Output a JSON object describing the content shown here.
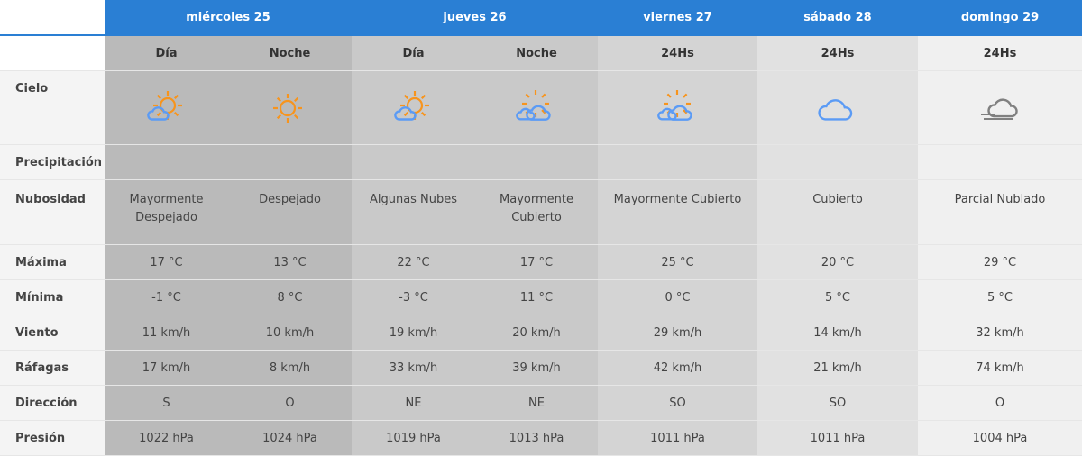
{
  "days": [
    "miércoles 25",
    "jueves 26",
    "viernes 27",
    "sábado 28",
    "domingo 29"
  ],
  "periods": [
    "Día",
    "Noche",
    "Día",
    "Noche",
    "24Hs",
    "24Hs",
    "24Hs"
  ],
  "labels": {
    "cielo": "Cielo",
    "precip": "Precipitación",
    "nub": "Nubosidad",
    "max": "Máxima",
    "min": "Mínima",
    "viento": "Viento",
    "rafagas": "Ráfagas",
    "dir": "Dirección",
    "presion": "Presión"
  },
  "icons": [
    "sun-cloud-icon",
    "sun-icon",
    "sun-cloud-icon",
    "sun-clouds-icon",
    "sun-clouds-icon",
    "cloud-icon",
    "fog-cloud-icon"
  ],
  "colors": {
    "header": "#2a7fd4",
    "sun": "#f7941d",
    "cloud": "#5b9bf5",
    "fog": "#808080"
  },
  "nub": [
    "Mayormente Despejado",
    "Despejado",
    "Algunas Nubes",
    "Mayormente Cubierto",
    "Mayormente Cubierto",
    "Cubierto",
    "Parcial Nublado"
  ],
  "max": [
    "17 °C",
    "13 °C",
    "22 °C",
    "17 °C",
    "25 °C",
    "20 °C",
    "29 °C"
  ],
  "min": [
    "-1 °C",
    "8 °C",
    "-3 °C",
    "11 °C",
    "0 °C",
    "5 °C",
    "5 °C"
  ],
  "viento": [
    "11 km/h",
    "10 km/h",
    "19 km/h",
    "20 km/h",
    "29 km/h",
    "14 km/h",
    "32 km/h"
  ],
  "rafagas": [
    "17 km/h",
    "8 km/h",
    "33 km/h",
    "39 km/h",
    "42 km/h",
    "21 km/h",
    "74 km/h"
  ],
  "dir": [
    "S",
    "O",
    "NE",
    "NE",
    "SO",
    "SO",
    "O"
  ],
  "presion": [
    "1022 hPa",
    "1024 hPa",
    "1019 hPa",
    "1013 hPa",
    "1011 hPa",
    "1011 hPa",
    "1004 hPa"
  ]
}
